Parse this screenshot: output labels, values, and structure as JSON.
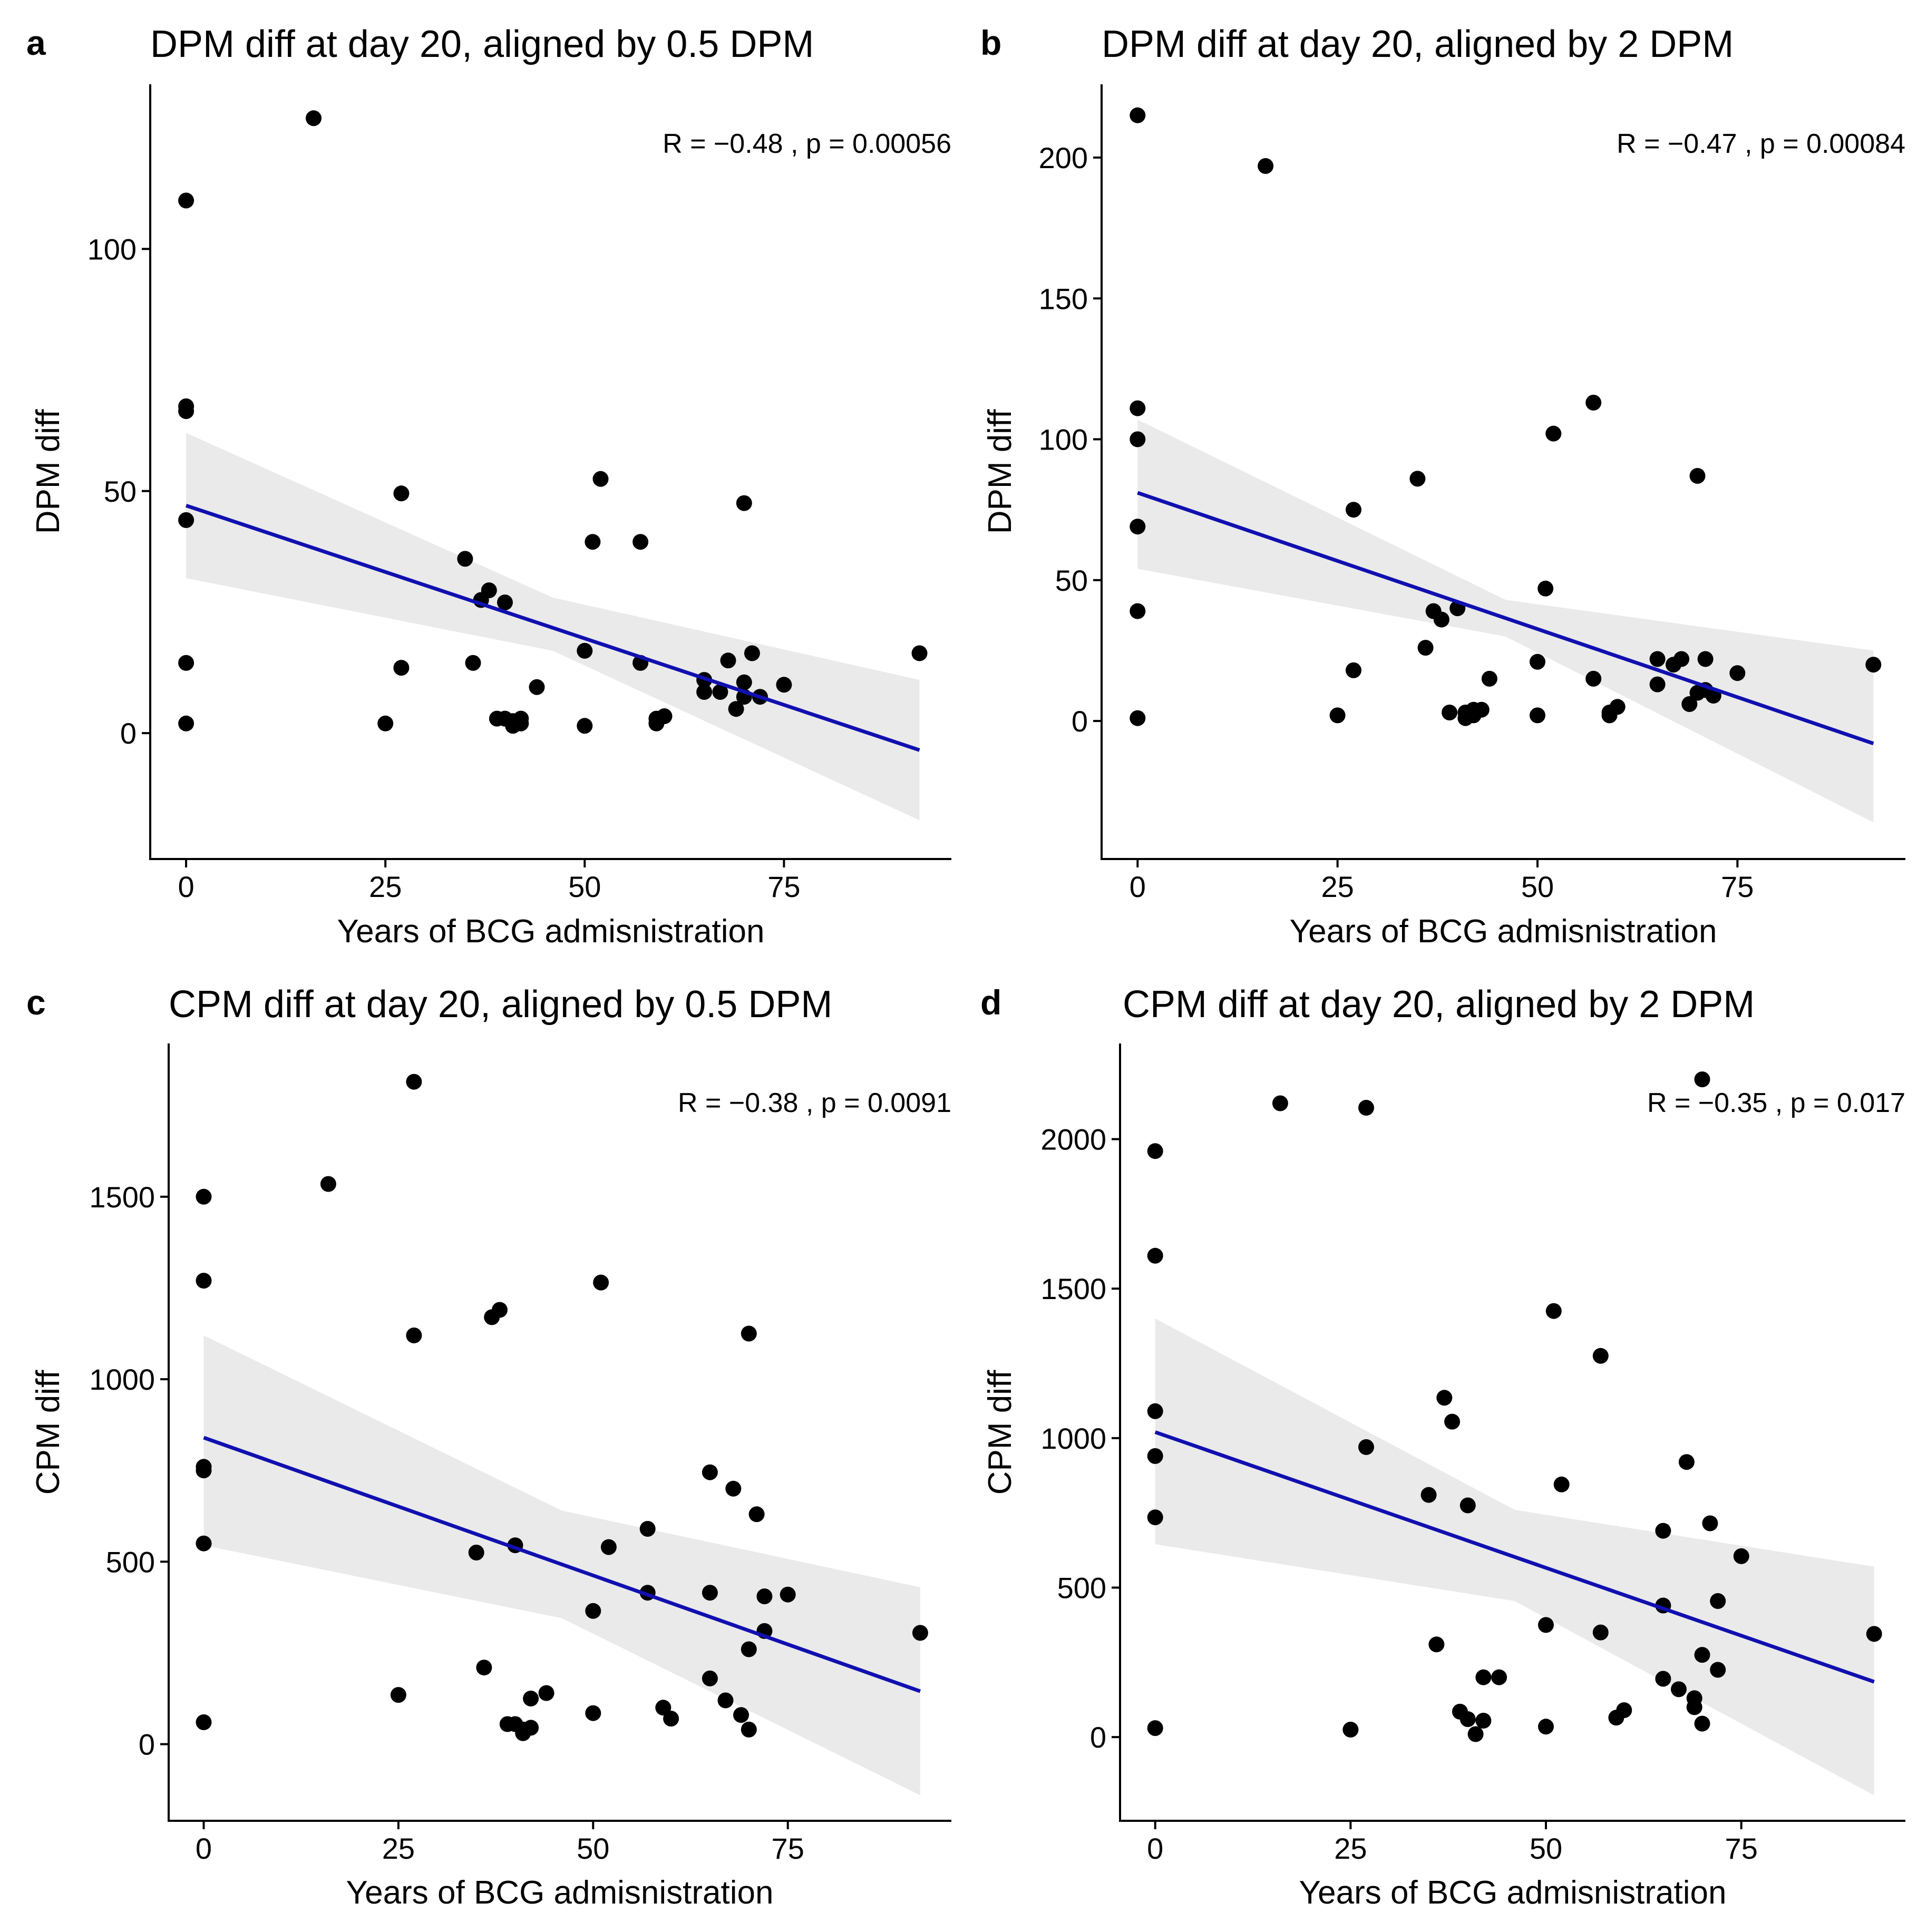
{
  "figure": {
    "style": {
      "point_color": "#000000",
      "line_color": "#1010b0",
      "band_color": "#e6e6e6"
    },
    "panels": [
      {
        "id": "a",
        "letter": "a",
        "title": "DPM diff at day 20, aligned by 0.5 DPM",
        "stat_text": "R = −0.48 , p = 0.00056"
      },
      {
        "id": "b",
        "letter": "b",
        "title": "DPM diff at day 20, aligned by 2 DPM",
        "stat_text": "R = −0.47 , p = 0.00084"
      },
      {
        "id": "c",
        "letter": "c",
        "title": "CPM diff at day 20, aligned by 0.5 DPM",
        "stat_text": "R = −0.38 , p = 0.0091"
      },
      {
        "id": "d",
        "letter": "d",
        "title": "CPM diff at day 20, aligned by 2 DPM",
        "stat_text": "R = −0.35 , p = 0.017"
      }
    ]
  },
  "chart_data": [
    {
      "type": "scatter",
      "panel": "a",
      "title": "DPM diff at day 20, aligned by 0.5 DPM",
      "xlabel": "Years of BCG admisnistration",
      "ylabel": "DPM diff",
      "xlim": [
        -4.5,
        96
      ],
      "ylim": [
        -26,
        134
      ],
      "xticks": [
        0,
        25,
        50,
        75
      ],
      "yticks": [
        0,
        50,
        100
      ],
      "grid": false,
      "annotation": "R = −0.48 , p = 0.00056",
      "points": [
        [
          0,
          110
        ],
        [
          0,
          67.5
        ],
        [
          0,
          66.5
        ],
        [
          0,
          44
        ],
        [
          0,
          14.5
        ],
        [
          0,
          2
        ],
        [
          16,
          127
        ],
        [
          25,
          2
        ],
        [
          27,
          49.5
        ],
        [
          27,
          13.5
        ],
        [
          35,
          36
        ],
        [
          36,
          14.5
        ],
        [
          37,
          27.5
        ],
        [
          38,
          29.5
        ],
        [
          39,
          3
        ],
        [
          40,
          27
        ],
        [
          40,
          3
        ],
        [
          41,
          2.5
        ],
        [
          41,
          1.5
        ],
        [
          42,
          3
        ],
        [
          42,
          2
        ],
        [
          44,
          9.5
        ],
        [
          50,
          1.5
        ],
        [
          50,
          17
        ],
        [
          51,
          39.5
        ],
        [
          52,
          52.5
        ],
        [
          57,
          39.5
        ],
        [
          57,
          14.5
        ],
        [
          59,
          3
        ],
        [
          59,
          2
        ],
        [
          60,
          3.5
        ],
        [
          65,
          11
        ],
        [
          65,
          8.5
        ],
        [
          67,
          8.5
        ],
        [
          68,
          15
        ],
        [
          69,
          5
        ],
        [
          70,
          47.5
        ],
        [
          70,
          7.5
        ],
        [
          70,
          10.5
        ],
        [
          71,
          16.5
        ],
        [
          72,
          7.5
        ],
        [
          75,
          10
        ],
        [
          92,
          16.5
        ]
      ],
      "fit": {
        "x": [
          0,
          92
        ],
        "y": [
          47,
          -3.5
        ]
      },
      "band": {
        "x": [
          0,
          46,
          92
        ],
        "upper": [
          62,
          28,
          11
        ],
        "lower": [
          32,
          17,
          -18
        ]
      }
    },
    {
      "type": "scatter",
      "panel": "b",
      "title": "DPM diff at day 20, aligned by 2 DPM",
      "xlabel": "Years of BCG admisnistration",
      "ylabel": "DPM diff",
      "xlim": [
        -4.5,
        96
      ],
      "ylim": [
        -49,
        226
      ],
      "xticks": [
        0,
        25,
        50,
        75
      ],
      "yticks": [
        0,
        50,
        100,
        150,
        200
      ],
      "grid": false,
      "annotation": "R = −0.47 , p = 0.00084",
      "points": [
        [
          0,
          215
        ],
        [
          0,
          111
        ],
        [
          0,
          100
        ],
        [
          0,
          69
        ],
        [
          0,
          39
        ],
        [
          0,
          1
        ],
        [
          16,
          197
        ],
        [
          25,
          2
        ],
        [
          27,
          75
        ],
        [
          27,
          18
        ],
        [
          35,
          86
        ],
        [
          36,
          26
        ],
        [
          37,
          39
        ],
        [
          38,
          36
        ],
        [
          39,
          3
        ],
        [
          40,
          40
        ],
        [
          41,
          3
        ],
        [
          41,
          1
        ],
        [
          42,
          4
        ],
        [
          42,
          2
        ],
        [
          43,
          4
        ],
        [
          44,
          15
        ],
        [
          50,
          21
        ],
        [
          50,
          2
        ],
        [
          51,
          47
        ],
        [
          52,
          102
        ],
        [
          57,
          113
        ],
        [
          57,
          15
        ],
        [
          59,
          2
        ],
        [
          59,
          3
        ],
        [
          60,
          5
        ],
        [
          65,
          22
        ],
        [
          65,
          13
        ],
        [
          67,
          20
        ],
        [
          68,
          22
        ],
        [
          69,
          6
        ],
        [
          70,
          87
        ],
        [
          70,
          10
        ],
        [
          71,
          11
        ],
        [
          71,
          22
        ],
        [
          72,
          9
        ],
        [
          75,
          17
        ],
        [
          92,
          20
        ]
      ],
      "fit": {
        "x": [
          0,
          92
        ],
        "y": [
          81,
          -8
        ]
      },
      "band": {
        "x": [
          0,
          46,
          92
        ],
        "upper": [
          107,
          43,
          25
        ],
        "lower": [
          54,
          30,
          -36
        ]
      }
    },
    {
      "type": "scatter",
      "panel": "c",
      "title": "CPM diff at day 20, aligned by 0.5 DPM",
      "xlabel": "Years of BCG admisnistration",
      "ylabel": "CPM diff",
      "xlim": [
        -4.5,
        96
      ],
      "ylim": [
        -210,
        1920
      ],
      "xticks": [
        0,
        25,
        50,
        75
      ],
      "yticks": [
        0,
        500,
        1000,
        1500
      ],
      "grid": false,
      "annotation": "R = −0.38 , p = 0.0091",
      "points": [
        [
          0,
          1500
        ],
        [
          0,
          1270
        ],
        [
          0,
          760
        ],
        [
          0,
          750
        ],
        [
          0,
          550
        ],
        [
          0,
          60
        ],
        [
          16,
          1535
        ],
        [
          25,
          135
        ],
        [
          27,
          1815
        ],
        [
          27,
          1120
        ],
        [
          35,
          525
        ],
        [
          36,
          210
        ],
        [
          37,
          1170
        ],
        [
          38,
          1190
        ],
        [
          39,
          55
        ],
        [
          40,
          545
        ],
        [
          40,
          55
        ],
        [
          41,
          40
        ],
        [
          41,
          30
        ],
        [
          42,
          125
        ],
        [
          42,
          45
        ],
        [
          44,
          140
        ],
        [
          50,
          365
        ],
        [
          50,
          85
        ],
        [
          51,
          1265
        ],
        [
          52,
          540
        ],
        [
          57,
          590
        ],
        [
          57,
          415
        ],
        [
          59,
          100
        ],
        [
          60,
          70
        ],
        [
          65,
          745
        ],
        [
          65,
          415
        ],
        [
          65,
          180
        ],
        [
          67,
          120
        ],
        [
          68,
          700
        ],
        [
          69,
          80
        ],
        [
          70,
          1125
        ],
        [
          70,
          260
        ],
        [
          70,
          40
        ],
        [
          71,
          630
        ],
        [
          72,
          405
        ],
        [
          72,
          310
        ],
        [
          75,
          410
        ],
        [
          92,
          305
        ]
      ],
      "fit": {
        "x": [
          0,
          92
        ],
        "y": [
          840,
          145
        ]
      },
      "band": {
        "x": [
          0,
          46,
          92
        ],
        "upper": [
          1120,
          640,
          430
        ],
        "lower": [
          545,
          345,
          -140
        ]
      }
    },
    {
      "type": "scatter",
      "panel": "d",
      "title": "CPM diff at day 20, aligned by 2 DPM",
      "xlabel": "Years of BCG admisnistration",
      "ylabel": "CPM diff",
      "xlim": [
        -4.5,
        96
      ],
      "ylim": [
        -280,
        2320
      ],
      "xticks": [
        0,
        25,
        50,
        75
      ],
      "yticks": [
        0,
        500,
        1000,
        1500,
        2000
      ],
      "grid": false,
      "annotation": "R = −0.35 , p = 0.017",
      "points": [
        [
          0,
          1960
        ],
        [
          0,
          1610
        ],
        [
          0,
          1090
        ],
        [
          0,
          940
        ],
        [
          0,
          735
        ],
        [
          0,
          30
        ],
        [
          16,
          2120
        ],
        [
          25,
          25
        ],
        [
          27,
          2105
        ],
        [
          27,
          970
        ],
        [
          35,
          810
        ],
        [
          36,
          310
        ],
        [
          37,
          1135
        ],
        [
          38,
          1055
        ],
        [
          39,
          85
        ],
        [
          40,
          775
        ],
        [
          40,
          60
        ],
        [
          41,
          10
        ],
        [
          42,
          200
        ],
        [
          42,
          55
        ],
        [
          44,
          200
        ],
        [
          50,
          375
        ],
        [
          50,
          35
        ],
        [
          51,
          1425
        ],
        [
          52,
          845
        ],
        [
          57,
          1275
        ],
        [
          57,
          350
        ],
        [
          59,
          65
        ],
        [
          60,
          90
        ],
        [
          65,
          690
        ],
        [
          65,
          440
        ],
        [
          65,
          195
        ],
        [
          67,
          160
        ],
        [
          68,
          920
        ],
        [
          69,
          130
        ],
        [
          69,
          100
        ],
        [
          70,
          2200
        ],
        [
          70,
          275
        ],
        [
          70,
          45
        ],
        [
          71,
          715
        ],
        [
          72,
          455
        ],
        [
          72,
          225
        ],
        [
          75,
          605
        ],
        [
          92,
          345
        ]
      ],
      "fit": {
        "x": [
          0,
          92
        ],
        "y": [
          1020,
          185
        ]
      },
      "band": {
        "x": [
          0,
          46,
          92
        ],
        "upper": [
          1400,
          760,
          570
        ],
        "lower": [
          645,
          455,
          -195
        ]
      }
    }
  ]
}
